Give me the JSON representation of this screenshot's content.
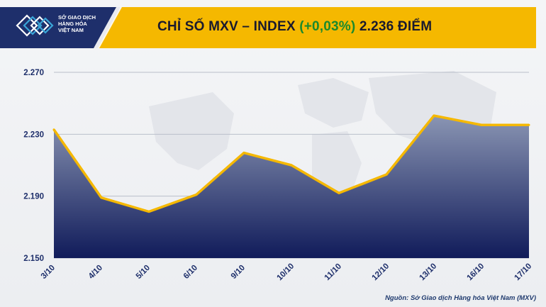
{
  "brand": {
    "lines": [
      "SỞ GIAO DỊCH",
      "HÀNG HÓA",
      "VIỆT NAM"
    ],
    "colors": {
      "navy": "#1e2f6b",
      "yellow": "#f5b800",
      "accent_teal": "#3aa6d8"
    }
  },
  "title": {
    "prefix": "CHỈ SỐ MXV – INDEX",
    "change": "(+0,03%)",
    "suffix": "2.236 ĐIỂM",
    "change_color": "#1b8a2c"
  },
  "source": "Nguồn: Sở Giao dịch Hàng hóa Việt Nam (MXV)",
  "chart_data": {
    "type": "area",
    "title": "CHỈ SỐ MXV – INDEX (+0,03%) 2.236 ĐIỂM",
    "xlabel": "",
    "ylabel": "",
    "categories": [
      "3/10",
      "4/10",
      "5/10",
      "6/10",
      "9/10",
      "10/10",
      "11/10",
      "12/10",
      "13/10",
      "16/10",
      "17/10"
    ],
    "values": [
      2233,
      2189,
      2180,
      2191,
      2218,
      2210,
      2192,
      2204,
      2242,
      2236,
      2236
    ],
    "ylim": [
      2150,
      2270
    ],
    "yticks": [
      2150,
      2190,
      2230,
      2270
    ],
    "ytick_labels": [
      "2.150",
      "2.190",
      "2.230",
      "2.270"
    ],
    "grid": true,
    "line_color": "#f5b800",
    "fill_top": "#8a95b3",
    "fill_bottom": "#101b5a"
  }
}
